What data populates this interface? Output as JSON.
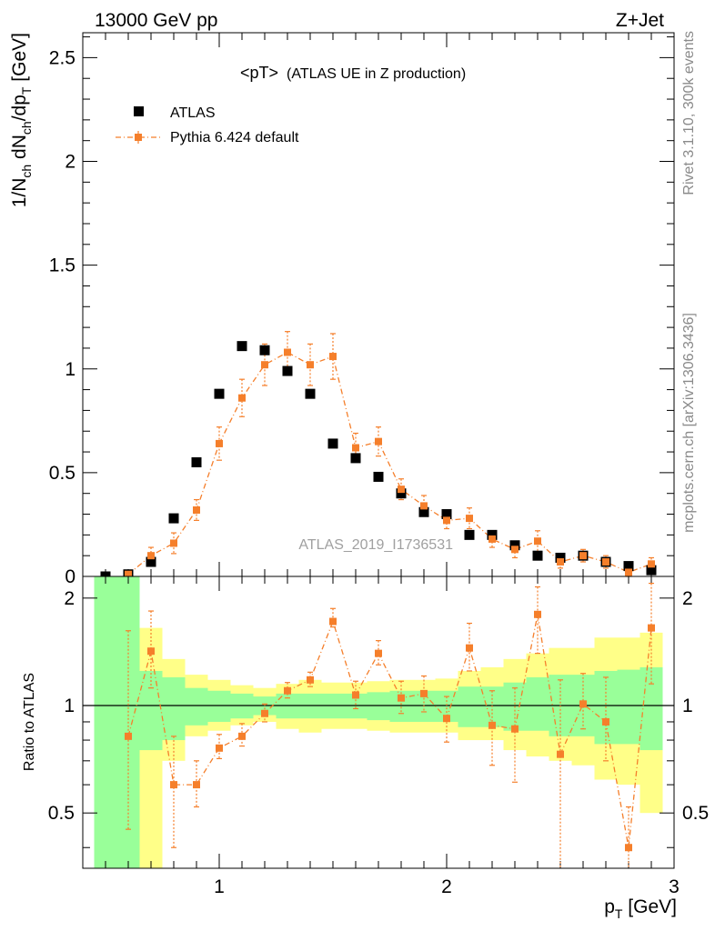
{
  "header": {
    "left": "13000 GeV pp",
    "right": "Z+Jet"
  },
  "side_labels": {
    "rivet": "Rivet 3.1.10,  300k events",
    "source": "mcplots.cern.ch [arXiv:1306.3436]"
  },
  "colors": {
    "data": "#000000",
    "mc": "#f57f2b",
    "band_inner": "#99ff99",
    "band_outer": "#ffff88"
  },
  "chart_data": [
    {
      "type": "scatter",
      "title": "<pT>",
      "subtitle": "(ATLAS UE in Z production)",
      "ylabel": "1/N_ch dN_ch/dp_T [GeV]",
      "xlabel": "",
      "xlim": [
        0.4,
        3.0
      ],
      "ylim": [
        0,
        2.62
      ],
      "yticks": [
        0,
        0.5,
        1,
        1.5,
        2,
        2.5
      ],
      "ytick_labels": [
        "0",
        "0.5",
        "1",
        "1.5",
        "2",
        "2.5"
      ],
      "legend": [
        "ATLAS",
        "Pythia 6.424 default"
      ],
      "legend_position": "top-left",
      "watermark": "ATLAS_2019_I1736531",
      "x": [
        0.5,
        0.6,
        0.7,
        0.8,
        0.9,
        1.0,
        1.1,
        1.2,
        1.3,
        1.4,
        1.5,
        1.6,
        1.7,
        1.8,
        1.9,
        2.0,
        2.1,
        2.2,
        2.3,
        2.4,
        2.5,
        2.6,
        2.7,
        2.8,
        2.9
      ],
      "series": [
        {
          "name": "ATLAS",
          "values": [
            0.0,
            0.01,
            0.07,
            0.28,
            0.55,
            0.88,
            1.11,
            1.09,
            0.99,
            0.88,
            0.64,
            0.57,
            0.48,
            0.4,
            0.31,
            0.3,
            0.2,
            0.2,
            0.15,
            0.1,
            0.09,
            0.1,
            0.07,
            0.05,
            0.03
          ]
        },
        {
          "name": "Pythia 6.424 default",
          "values": [
            null,
            0.01,
            0.1,
            0.16,
            0.32,
            0.64,
            0.86,
            1.02,
            1.08,
            1.02,
            1.06,
            0.62,
            0.65,
            0.42,
            0.34,
            0.27,
            0.28,
            0.18,
            0.13,
            0.17,
            0.07,
            0.1,
            0.07,
            0.02,
            0.06
          ],
          "errors": [
            null,
            0.01,
            0.04,
            0.05,
            0.05,
            0.08,
            0.09,
            0.1,
            0.1,
            0.1,
            0.11,
            0.07,
            0.07,
            0.05,
            0.05,
            0.04,
            0.05,
            0.04,
            0.04,
            0.05,
            0.03,
            0.03,
            0.03,
            0.02,
            0.03
          ]
        }
      ]
    },
    {
      "type": "scatter",
      "title": "",
      "ylabel": "Ratio to ATLAS",
      "xlabel": "p_T [GeV]",
      "xlim": [
        0.4,
        3.0
      ],
      "ylim": [
        0.35,
        2.3
      ],
      "yscale": "log",
      "yticks": [
        0.5,
        1,
        2
      ],
      "ytick_labels": [
        "0.5",
        "1",
        "2"
      ],
      "xticks": [
        1,
        2,
        3
      ],
      "xtick_labels": [
        "1",
        "2",
        "3"
      ],
      "reference_line": 1,
      "bin_edges": [
        0.45,
        0.55,
        0.65,
        0.75,
        0.85,
        0.95,
        1.05,
        1.15,
        1.25,
        1.35,
        1.45,
        1.55,
        1.65,
        1.75,
        1.85,
        1.95,
        2.05,
        2.15,
        2.25,
        2.35,
        2.45,
        2.55,
        2.65,
        2.75,
        2.85,
        2.95
      ],
      "band_inner": [
        [
          0.35,
          2.3
        ],
        [
          0.35,
          2.3
        ],
        [
          0.75,
          1.25
        ],
        [
          0.8,
          1.2
        ],
        [
          0.88,
          1.12
        ],
        [
          0.9,
          1.1
        ],
        [
          0.92,
          1.08
        ],
        [
          0.94,
          1.06
        ],
        [
          0.92,
          1.08
        ],
        [
          0.92,
          1.08
        ],
        [
          0.92,
          1.08
        ],
        [
          0.92,
          1.08
        ],
        [
          0.91,
          1.09
        ],
        [
          0.9,
          1.1
        ],
        [
          0.9,
          1.1
        ],
        [
          0.9,
          1.1
        ],
        [
          0.87,
          1.13
        ],
        [
          0.87,
          1.13
        ],
        [
          0.85,
          1.16
        ],
        [
          0.85,
          1.2
        ],
        [
          0.82,
          1.22
        ],
        [
          0.82,
          1.22
        ],
        [
          0.78,
          1.25
        ],
        [
          0.78,
          1.26
        ],
        [
          0.75,
          1.28
        ]
      ],
      "band_outer": [
        [
          0.35,
          2.3
        ],
        [
          0.35,
          2.3
        ],
        [
          0.35,
          1.65
        ],
        [
          0.7,
          1.35
        ],
        [
          0.82,
          1.22
        ],
        [
          0.85,
          1.18
        ],
        [
          0.88,
          1.14
        ],
        [
          0.9,
          1.12
        ],
        [
          0.86,
          1.15
        ],
        [
          0.84,
          1.18
        ],
        [
          0.86,
          1.16
        ],
        [
          0.86,
          1.16
        ],
        [
          0.85,
          1.17
        ],
        [
          0.84,
          1.18
        ],
        [
          0.84,
          1.18
        ],
        [
          0.84,
          1.19
        ],
        [
          0.8,
          1.25
        ],
        [
          0.8,
          1.28
        ],
        [
          0.75,
          1.35
        ],
        [
          0.72,
          1.4
        ],
        [
          0.7,
          1.45
        ],
        [
          0.68,
          1.45
        ],
        [
          0.62,
          1.55
        ],
        [
          0.6,
          1.55
        ],
        [
          0.5,
          1.6
        ]
      ],
      "series": [
        {
          "name": "Pythia 6.424 default",
          "values": [
            null,
            0.82,
            1.42,
            0.6,
            0.6,
            0.76,
            0.82,
            0.95,
            1.1,
            1.18,
            1.72,
            1.07,
            1.4,
            1.05,
            1.08,
            0.92,
            1.45,
            0.88,
            0.86,
            1.8,
            0.73,
            1.01,
            0.9,
            0.4,
            1.65
          ],
          "err_low": [
            null,
            0.37,
            0.3,
            0.2,
            0.08,
            0.05,
            0.05,
            0.05,
            0.05,
            0.05,
            0.06,
            0.09,
            0.1,
            0.1,
            0.12,
            0.13,
            0.2,
            0.2,
            0.25,
            0.4,
            0.4,
            0.15,
            0.2,
            0.1,
            0.5
          ],
          "err_high": [
            null,
            0.8,
            0.42,
            0.22,
            0.1,
            0.07,
            0.07,
            0.06,
            0.06,
            0.06,
            0.15,
            0.1,
            0.12,
            0.12,
            0.13,
            0.14,
            0.25,
            0.22,
            0.26,
            0.35,
            0.45,
            0.22,
            0.3,
            0.12,
            0.55
          ]
        }
      ]
    }
  ]
}
